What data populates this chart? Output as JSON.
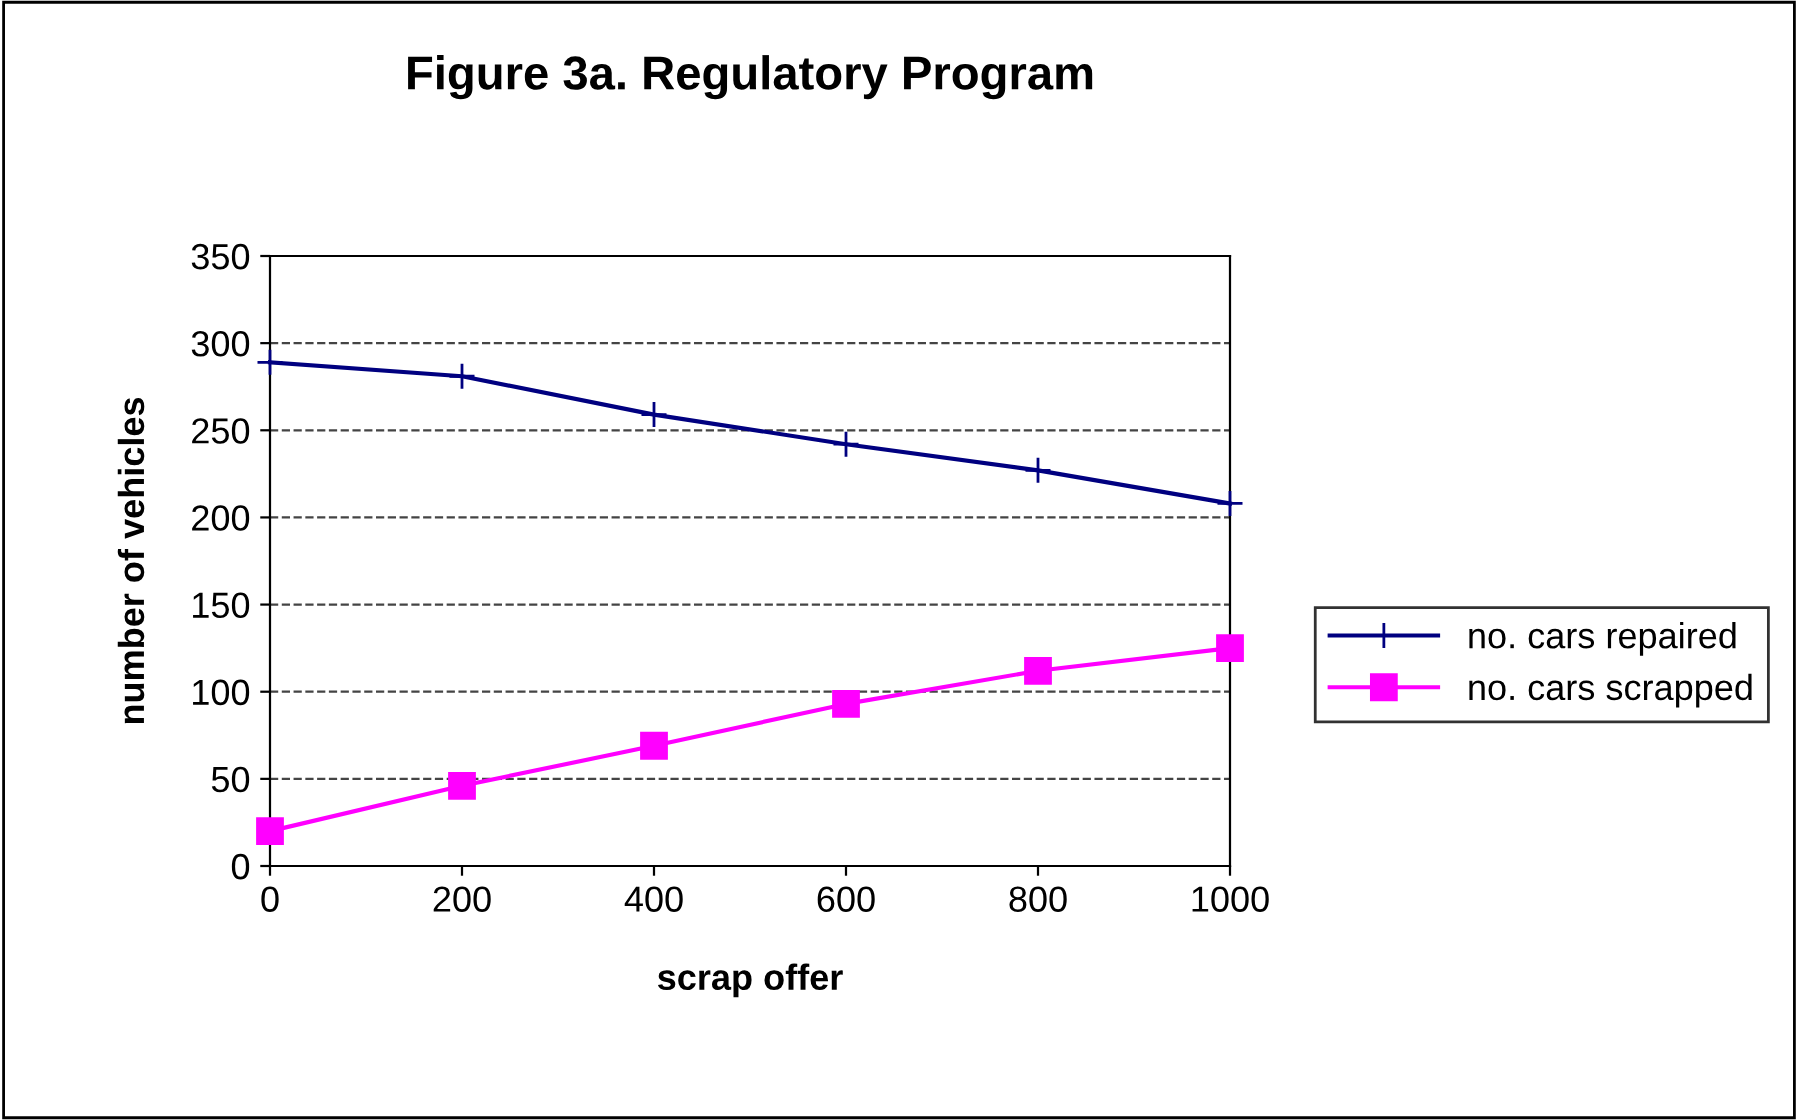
{
  "chart_data": {
    "type": "line",
    "title": "Figure 3a. Regulatory Program",
    "xlabel": "scrap offer",
    "ylabel": "number of vehicles",
    "x": [
      0,
      200,
      400,
      600,
      800,
      1000
    ],
    "series": [
      {
        "name": "no. cars repaired",
        "color": "#000080",
        "marker": "cross",
        "values": [
          289,
          281,
          259,
          242,
          227,
          208
        ]
      },
      {
        "name": "no. cars scrapped",
        "color": "#ff00ff",
        "marker": "square",
        "values": [
          20,
          46,
          69,
          93,
          112,
          125
        ]
      }
    ],
    "xlim": [
      0,
      1000
    ],
    "xticks": [
      0,
      200,
      400,
      600,
      800,
      1000
    ],
    "ylim": [
      0,
      350
    ],
    "yticks": [
      0,
      50,
      100,
      150,
      200,
      250,
      300,
      350
    ],
    "grid": "y",
    "legend": "right"
  }
}
